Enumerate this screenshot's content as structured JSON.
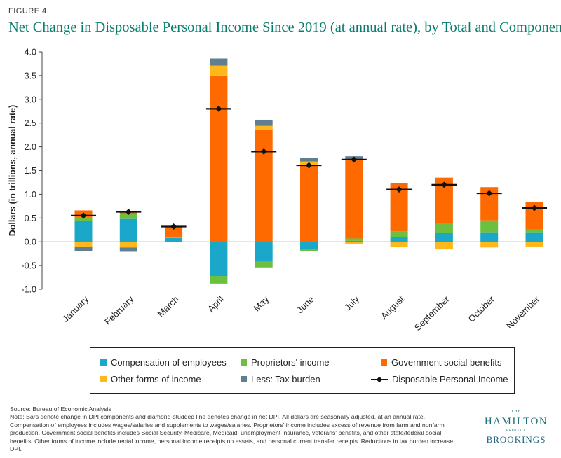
{
  "figure_label": "FIGURE 4.",
  "title": "Net Change in Disposable Personal Income Since 2019 (at annual rate), by Total and Component",
  "chart_data": {
    "type": "bar",
    "stacked": true,
    "categories": [
      "January",
      "February",
      "March",
      "April",
      "May",
      "June",
      "July",
      "August",
      "September",
      "October",
      "November"
    ],
    "ylabel": "Dollars (in trillions, annual rate)",
    "ylim": [
      -1.0,
      4.0
    ],
    "yticks": [
      "4.0",
      "3.5",
      "3.0",
      "2.5",
      "2.0",
      "1.5",
      "1.0",
      "0.5",
      "0.0",
      "-0.5",
      "-1.0"
    ],
    "ytick_values": [
      4.0,
      3.5,
      3.0,
      2.5,
      2.0,
      1.5,
      1.0,
      0.5,
      0.0,
      -0.5,
      -1.0
    ],
    "grid": false,
    "series": [
      {
        "name": "Compensation of employees",
        "color": "#1ba7c9",
        "values": [
          0.44,
          0.48,
          0.08,
          -0.72,
          -0.42,
          -0.17,
          0.02,
          0.1,
          0.18,
          0.2,
          0.2
        ]
      },
      {
        "name": "Proprietors' income",
        "color": "#6cbf3f",
        "values": [
          0.08,
          0.1,
          0.01,
          -0.16,
          -0.12,
          -0.02,
          0.05,
          0.12,
          0.22,
          0.25,
          0.06
        ]
      },
      {
        "name": "Government social benefits",
        "color": "#ff6a00",
        "values": [
          0.14,
          0.07,
          0.23,
          3.5,
          2.35,
          1.62,
          1.67,
          1.01,
          0.95,
          0.7,
          0.57
        ]
      },
      {
        "name": "Other forms of income",
        "color": "#ffb81c",
        "values": [
          -0.1,
          -0.12,
          0.0,
          0.21,
          0.09,
          0.07,
          -0.05,
          -0.11,
          -0.15,
          -0.12,
          -0.1
        ]
      },
      {
        "name": "Less: Tax burden",
        "color": "#5f7f91",
        "values": [
          -0.1,
          -0.09,
          0.0,
          0.15,
          0.13,
          0.08,
          0.06,
          0.0,
          -0.01,
          0.0,
          0.0
        ]
      }
    ],
    "line_series": {
      "name": "Disposable Personal Income",
      "color": "#111111",
      "values": [
        0.55,
        0.63,
        0.32,
        2.8,
        1.9,
        1.61,
        1.73,
        1.1,
        1.2,
        1.02,
        0.71
      ]
    }
  },
  "legend_items": [
    {
      "label": "Compensation of employees",
      "color": "#1ba7c9"
    },
    {
      "label": "Proprietors' income",
      "color": "#6cbf3f"
    },
    {
      "label": "Government social benefits",
      "color": "#ff6a00"
    },
    {
      "label": "Other forms of income",
      "color": "#ffb81c"
    },
    {
      "label": "Less: Tax burden",
      "color": "#5f7f91"
    },
    {
      "label": "Disposable Personal Income",
      "color": "#111111"
    }
  ],
  "source": "Source: Bureau of Economic Analysis",
  "note": "Note: Bars denote change in DPI components and diamond-studded line denotes change in net DPI. All dollars are seasonally adjusted, at an annual rate. Compensation of employees includes wages/salaries and supplements to wages/salaries. Proprietors' income includes excess of revenue from farm and nonfarm production. Government social benefits includes Social Security, Medicare, Medicaid, unemployment insurance, veterans' benefits, and other state/federal social benefits. Other forms of income include rental income, personal income receipts on assets, and personal current transfer receipts. Reductions in tax burden increase DPI.",
  "logo": {
    "the": "THE",
    "hamilton": "HAMILTON",
    "project": "PROJECT",
    "brookings": "BROOKINGS"
  }
}
